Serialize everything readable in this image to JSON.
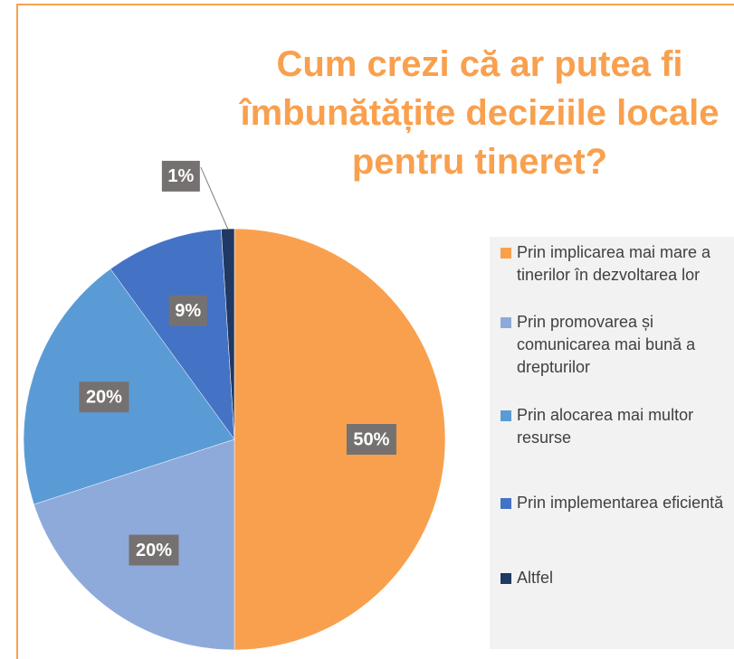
{
  "chart_data": {
    "type": "pie",
    "title": "Cum crezi că ar putea fi îmbunătățite deciziile locale pentru tineret?",
    "categories": [
      "Prin implicarea mai mare a tinerilor în dezvoltarea lor",
      "Prin promovarea și comunicarea mai bună a drepturilor",
      "Prin alocarea mai multor resurse",
      "Prin implementarea eficientă",
      "Altfel"
    ],
    "values": [
      50,
      20,
      20,
      9,
      1
    ],
    "value_labels": [
      "50%",
      "20%",
      "20%",
      "9%",
      "1%"
    ],
    "colors": [
      "#f9a04e",
      "#8eaadb",
      "#5b9bd5",
      "#4472c4",
      "#1f3864"
    ],
    "legend": "right"
  }
}
